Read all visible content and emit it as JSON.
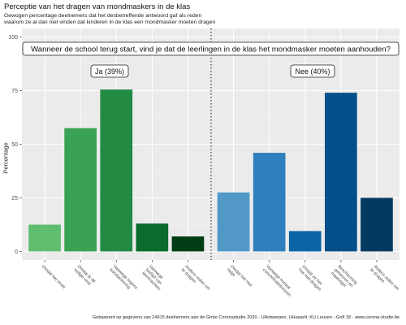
{
  "title": "Perceptie van het dragen van mondmaskers in de klas",
  "subtitle": "Gewogen percentage deelnemers dat het desbetreffende antwoord gaf als reden\nwaarom ze al dan niet vinden dat kinderen in de klas een mondmasker moeten dragen",
  "caption": "Gebaseerd op gegevens van 24915 deelnemers aan de Grote Coronastudie 2020 - UAntwerpen, UHasselt, KU Leuven - Golf 18 - www.corona-studie.be",
  "chart_data": {
    "type": "bar",
    "question": "Wanneer de school terug start, vind je dat de leerlingen in de klas het mondmasker moeten aanhouden?",
    "ylabel": "Percentage",
    "ylim": [
      -4,
      104
    ],
    "yticks": [
      0,
      25,
      50,
      75,
      100
    ],
    "grid": true,
    "panels": [
      {
        "label": "Ja (39%)",
        "categories": [
          "Omdat het moet",
          "Omdat ik dit veilige vind",
          "Vanwege tegens kansbestoring",
          "Vanwege leeftijd van leerkrachten",
          "Andere reden om te dragen"
        ],
        "values": [
          12.5,
          57.5,
          75.5,
          13,
          7
        ],
        "colors": [
          "#5fbd6f",
          "#3aa255",
          "#228a43",
          "#0a6b2d",
          "#003d16"
        ]
      },
      {
        "label": "Nee (40%)",
        "categories": [
          "Omdat het niet helpt",
          "Vanwege kortaal concentratietuissen",
          "Omdat ze het fuw niet dragen",
          "Bescherming gebeuren en maatregel",
          "Andere reden om te dragen"
        ],
        "values": [
          27.5,
          46,
          9.5,
          74,
          25
        ],
        "colors": [
          "#5198c8",
          "#2e7fbc",
          "#0a64a6",
          "#044f89",
          "#053a60"
        ]
      }
    ]
  }
}
